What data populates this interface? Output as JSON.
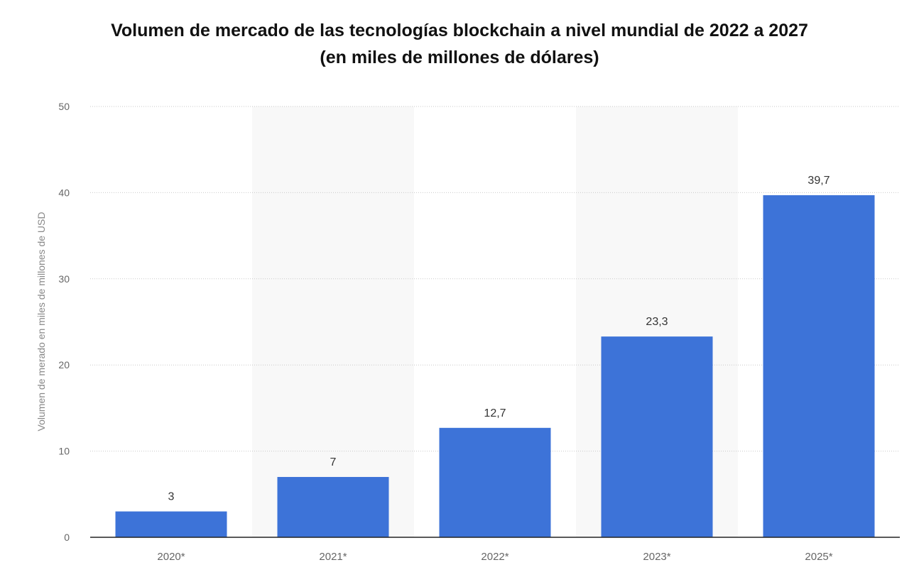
{
  "chart_data": {
    "type": "bar",
    "title_line1": "Volumen de mercado de las tecnologías blockchain a nivel mundial de 2022 a 2027",
    "title_line2": "(en miles de millones de dólares)",
    "xlabel": "",
    "ylabel": "Volumen de merado en miles de millones de USD",
    "categories": [
      "2020*",
      "2021*",
      "2022*",
      "2023*",
      "2025*"
    ],
    "values": [
      3,
      7,
      12.7,
      23.3,
      39.7
    ],
    "value_labels": [
      "3",
      "7",
      "12,7",
      "23,3",
      "39,7"
    ],
    "ylim": [
      0,
      50
    ],
    "yticks": [
      0,
      10,
      20,
      30,
      40,
      50
    ],
    "grid": true,
    "legend": "none",
    "colors": {
      "bar": "#3d73d8",
      "band": "#f8f8f8",
      "grid": "#c9c9c9",
      "axis": "#222222",
      "tick_text": "#666666",
      "label_text": "#333333"
    }
  }
}
